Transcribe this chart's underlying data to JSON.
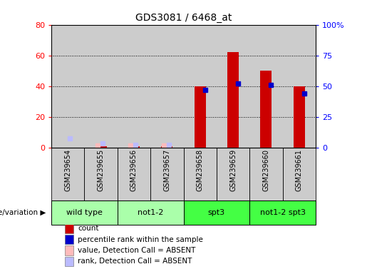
{
  "title": "GDS3081 / 6468_at",
  "samples": [
    "GSM239654",
    "GSM239655",
    "GSM239656",
    "GSM239657",
    "GSM239658",
    "GSM239659",
    "GSM239660",
    "GSM239661"
  ],
  "groups": [
    {
      "label": "wild type",
      "color": "#aaffaa",
      "start": 0,
      "end": 2
    },
    {
      "label": "not1-2",
      "color": "#aaffaa",
      "start": 2,
      "end": 4
    },
    {
      "label": "spt3",
      "color": "#44ff44",
      "start": 4,
      "end": 6
    },
    {
      "label": "not1-2 spt3",
      "color": "#44ff44",
      "start": 6,
      "end": 8
    }
  ],
  "count_values": [
    0,
    1,
    1,
    1,
    40,
    62,
    50,
    40
  ],
  "percentile_rank_values": [
    null,
    null,
    null,
    null,
    47,
    52,
    51,
    44
  ],
  "absent_value_values": [
    null,
    1,
    1,
    1,
    null,
    null,
    null,
    null
  ],
  "absent_rank_values": [
    6,
    3,
    2,
    2,
    null,
    null,
    null,
    null
  ],
  "left_ylim": [
    0,
    80
  ],
  "right_ylim": [
    0,
    100
  ],
  "left_yticks": [
    0,
    20,
    40,
    60,
    80
  ],
  "right_yticks": [
    0,
    25,
    50,
    75,
    100
  ],
  "right_yticklabels": [
    "0",
    "25",
    "50",
    "75",
    "100%"
  ],
  "bar_color": "#cc0000",
  "percentile_color": "#0000cc",
  "absent_value_color": "#ffbbbb",
  "absent_rank_color": "#bbbbff",
  "sample_bg_color": "#cccccc",
  "plot_bg_color": "#ffffff",
  "legend_items": [
    {
      "label": "count",
      "color": "#cc0000"
    },
    {
      "label": "percentile rank within the sample",
      "color": "#0000cc"
    },
    {
      "label": "value, Detection Call = ABSENT",
      "color": "#ffbbbb"
    },
    {
      "label": "rank, Detection Call = ABSENT",
      "color": "#bbbbff"
    }
  ]
}
